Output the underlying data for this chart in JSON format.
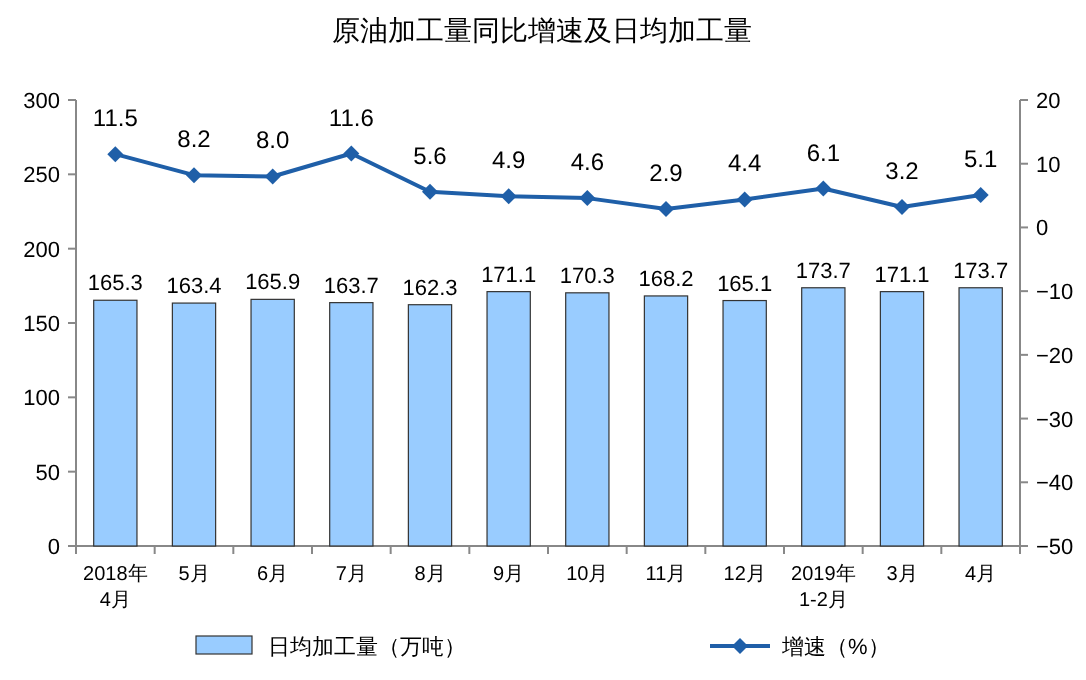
{
  "chart_data": {
    "type": "bar",
    "title": "原油加工量同比增速及日均加工量",
    "categories": [
      "2018年\n4月",
      "5月",
      "6月",
      "7月",
      "8月",
      "9月",
      "10月",
      "11月",
      "12月",
      "2019年\n1-2月",
      "3月",
      "4月"
    ],
    "series": [
      {
        "name": "日均加工量（万吨）",
        "color": "#99ccff",
        "values": [
          165.3,
          163.4,
          165.9,
          163.7,
          162.3,
          171.1,
          170.3,
          168.2,
          165.1,
          173.7,
          171.1,
          173.7
        ],
        "value_labels": [
          "165.3",
          "163.4",
          "165.9",
          "163.7",
          "162.3",
          "171.1",
          "170.3",
          "168.2",
          "165.1",
          "173.7",
          "171.1",
          "173.7"
        ]
      },
      {
        "name": "增速（%）",
        "type": "line",
        "axis": "y2",
        "color": "#1f5fa8",
        "marker": "diamond",
        "values": [
          11.5,
          8.2,
          8.0,
          11.6,
          5.6,
          4.9,
          4.6,
          2.9,
          4.4,
          6.1,
          3.2,
          5.1
        ],
        "value_labels": [
          "11.5",
          "8.2",
          "8.0",
          "11.6",
          "5.6",
          "4.9",
          "4.6",
          "2.9",
          "4.4",
          "6.1",
          "3.2",
          "5.1"
        ]
      }
    ],
    "ylim": [
      0,
      300
    ],
    "yticks": [
      0,
      50,
      100,
      150,
      200,
      250,
      300
    ],
    "y2lim": [
      -50,
      20
    ],
    "y2ticks": [
      -50,
      -40,
      -30,
      -20,
      -10,
      0,
      10,
      20
    ],
    "grid": false,
    "legend": "bottom"
  }
}
